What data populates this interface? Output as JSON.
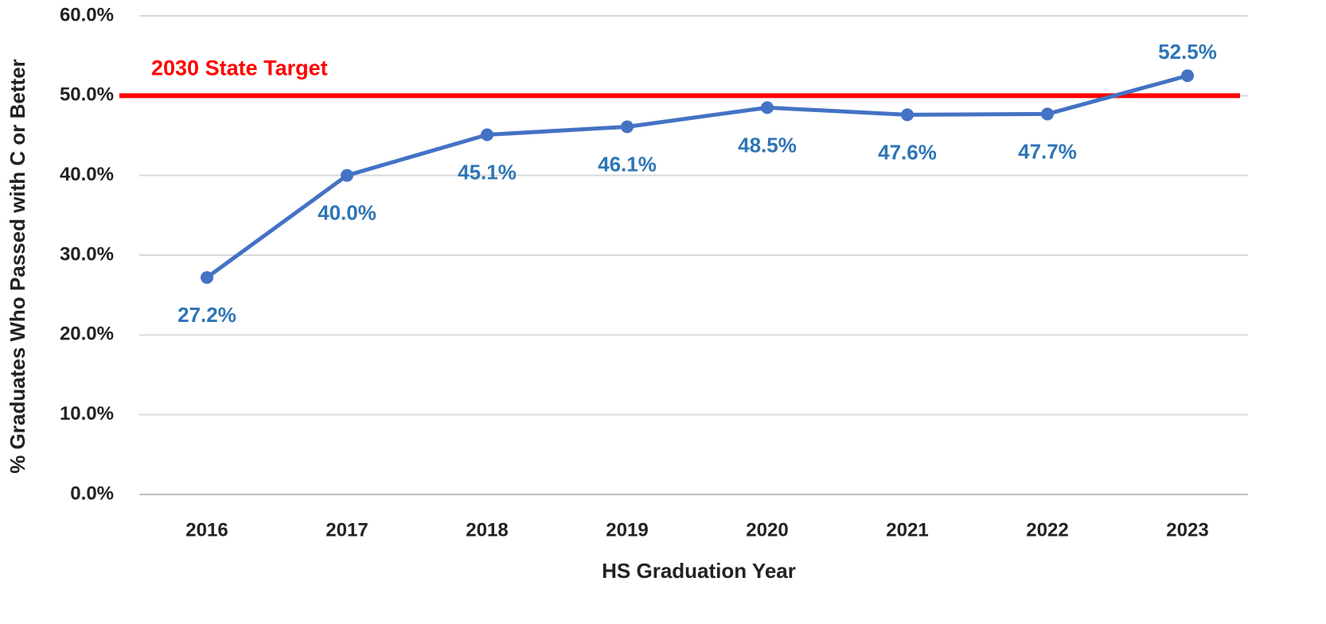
{
  "chart_data": {
    "type": "line",
    "x_label": "HS Graduation Year",
    "y_label": "% Graduates Who Passed with C or Better",
    "categories": [
      "2016",
      "2017",
      "2018",
      "2019",
      "2020",
      "2021",
      "2022",
      "2023"
    ],
    "series": [
      {
        "name": "% Graduates Who Passed with C or Better",
        "color": "#4472c4",
        "values": [
          27.2,
          40.0,
          45.1,
          46.1,
          48.5,
          47.6,
          47.7,
          52.5
        ],
        "value_labels": [
          "27.2%",
          "40.0%",
          "45.1%",
          "46.1%",
          "48.5%",
          "47.6%",
          "47.7%",
          "52.5%"
        ],
        "label_color": "#2e75b6"
      }
    ],
    "target": {
      "label": "2030 State Target",
      "value": 50,
      "color": "#ff0000"
    },
    "ylim": [
      0,
      60
    ],
    "yticks": [
      {
        "value": 0,
        "label": "0.0%"
      },
      {
        "value": 10,
        "label": "10.0%"
      },
      {
        "value": 20,
        "label": "20.0%"
      },
      {
        "value": 30,
        "label": "30.0%"
      },
      {
        "value": 40,
        "label": "40.0%"
      },
      {
        "value": 50,
        "label": "50.0%"
      },
      {
        "value": 60,
        "label": "60.0%"
      }
    ],
    "grid": true
  }
}
